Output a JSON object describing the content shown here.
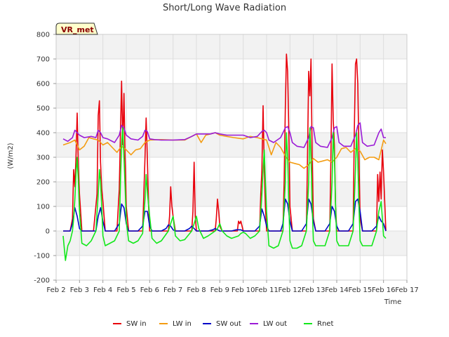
{
  "chart_data": {
    "type": "line",
    "title": "Short/Long Wave Radiation",
    "xlabel": "Time",
    "ylabel": "(W/m2)",
    "badge": "VR_met",
    "xlim": [
      2,
      17
    ],
    "ylim": [
      -200,
      800
    ],
    "x_ticks": [
      {
        "x": 2,
        "label": "Feb 2"
      },
      {
        "x": 3,
        "label": "Feb 3"
      },
      {
        "x": 4,
        "label": "Feb 4"
      },
      {
        "x": 5,
        "label": "Feb 5"
      },
      {
        "x": 6,
        "label": "Feb 6"
      },
      {
        "x": 7,
        "label": "Feb 7"
      },
      {
        "x": 8,
        "label": "Feb 8"
      },
      {
        "x": 9,
        "label": "Feb 9"
      },
      {
        "x": 10,
        "label": "Feb 10"
      },
      {
        "x": 11,
        "label": "Feb 11"
      },
      {
        "x": 12,
        "label": "Feb 12"
      },
      {
        "x": 13,
        "label": "Feb 13"
      },
      {
        "x": 14,
        "label": "Feb 14"
      },
      {
        "x": 15,
        "label": "Feb 15"
      },
      {
        "x": 16,
        "label": "Feb 16"
      },
      {
        "x": 17,
        "label": "Feb 17"
      }
    ],
    "y_ticks": [
      {
        "y": -200,
        "label": "-200"
      },
      {
        "y": -100,
        "label": "-100"
      },
      {
        "y": 0,
        "label": "0"
      },
      {
        "y": 100,
        "label": "100"
      },
      {
        "y": 200,
        "label": "200"
      },
      {
        "y": 300,
        "label": "300"
      },
      {
        "y": 400,
        "label": "400"
      },
      {
        "y": 500,
        "label": "500"
      },
      {
        "y": 600,
        "label": "600"
      },
      {
        "y": 700,
        "label": "700"
      },
      {
        "y": 800,
        "label": "800"
      }
    ],
    "grid": true,
    "legend_position": "bottom",
    "series": [
      {
        "name": "SW in",
        "color": "#e8000b",
        "x": [
          2.3,
          2.6,
          2.7,
          2.75,
          2.8,
          2.85,
          2.9,
          2.95,
          3.0,
          3.1,
          3.3,
          3.6,
          3.75,
          3.8,
          3.85,
          3.9,
          3.95,
          4.0,
          4.1,
          4.3,
          4.6,
          4.7,
          4.75,
          4.8,
          4.85,
          4.9,
          4.95,
          5.0,
          5.1,
          5.3,
          5.7,
          5.75,
          5.8,
          5.85,
          5.9,
          5.95,
          6.0,
          6.1,
          6.3,
          6.8,
          6.85,
          6.9,
          6.95,
          7.0,
          7.1,
          7.3,
          7.8,
          7.85,
          7.9,
          7.95,
          8.0,
          8.1,
          8.3,
          8.8,
          8.85,
          8.9,
          8.95,
          9.0,
          9.1,
          9.3,
          9.75,
          9.8,
          9.85,
          9.9,
          9.95,
          10.0,
          10.1,
          10.3,
          10.7,
          10.75,
          10.8,
          10.85,
          10.9,
          10.95,
          11.0,
          11.1,
          11.3,
          11.7,
          11.75,
          11.8,
          11.85,
          11.9,
          11.95,
          12.0,
          12.1,
          12.3,
          12.7,
          12.75,
          12.8,
          12.85,
          12.9,
          12.95,
          13.0,
          13.1,
          13.3,
          13.7,
          13.75,
          13.8,
          13.85,
          13.9,
          13.95,
          14.0,
          14.1,
          14.3,
          14.7,
          14.75,
          14.8,
          14.85,
          14.9,
          14.95,
          15.0,
          15.1,
          15.3,
          15.7,
          15.75,
          15.8,
          15.85,
          15.9,
          15.95,
          16.0,
          16.1
        ],
        "y": [
          0,
          0,
          50,
          250,
          180,
          300,
          480,
          260,
          150,
          0,
          0,
          0,
          150,
          470,
          530,
          280,
          170,
          120,
          0,
          0,
          0,
          170,
          400,
          610,
          350,
          560,
          300,
          100,
          0,
          0,
          0,
          150,
          300,
          460,
          300,
          110,
          0,
          0,
          0,
          0,
          60,
          180,
          100,
          60,
          0,
          0,
          0,
          80,
          280,
          60,
          0,
          0,
          0,
          0,
          50,
          130,
          80,
          20,
          0,
          0,
          0,
          40,
          30,
          40,
          20,
          0,
          0,
          0,
          0,
          150,
          250,
          510,
          250,
          100,
          0,
          0,
          0,
          0,
          200,
          500,
          720,
          650,
          400,
          100,
          0,
          0,
          0,
          300,
          650,
          550,
          700,
          300,
          50,
          0,
          0,
          0,
          300,
          680,
          450,
          350,
          100,
          0,
          0,
          0,
          0,
          400,
          680,
          700,
          600,
          300,
          50,
          0,
          0,
          0,
          230,
          120,
          240,
          130,
          330,
          240,
          0
        ]
      },
      {
        "name": "LW in",
        "color": "#f39c12",
        "x": [
          2.3,
          2.6,
          2.8,
          3.0,
          3.2,
          3.4,
          3.6,
          3.8,
          4.0,
          4.2,
          4.4,
          4.6,
          4.8,
          5.0,
          5.2,
          5.4,
          5.6,
          5.8,
          6.0,
          6.5,
          7.0,
          7.5,
          8.0,
          8.2,
          8.4,
          8.6,
          8.8,
          9.0,
          9.3,
          9.6,
          10.0,
          10.3,
          10.6,
          11.0,
          11.2,
          11.4,
          11.6,
          11.8,
          12.0,
          12.2,
          12.4,
          12.6,
          12.8,
          13.0,
          13.2,
          13.4,
          13.6,
          13.8,
          14.0,
          14.2,
          14.4,
          14.6,
          14.8,
          15.0,
          15.2,
          15.4,
          15.6,
          15.8,
          16.0,
          16.1
        ],
        "y": [
          350,
          360,
          370,
          330,
          345,
          380,
          375,
          370,
          350,
          360,
          340,
          320,
          345,
          330,
          310,
          330,
          335,
          360,
          370,
          372,
          370,
          370,
          395,
          360,
          390,
          395,
          400,
          390,
          385,
          380,
          375,
          385,
          380,
          370,
          310,
          360,
          340,
          305,
          280,
          275,
          270,
          255,
          270,
          295,
          280,
          285,
          290,
          280,
          300,
          335,
          340,
          320,
          335,
          325,
          290,
          300,
          300,
          290,
          370,
          355
        ]
      },
      {
        "name": "SW out",
        "color": "#0008c8",
        "x": [
          2.3,
          2.6,
          2.7,
          2.8,
          2.9,
          3.0,
          3.1,
          3.3,
          3.7,
          3.8,
          3.9,
          4.0,
          4.1,
          4.5,
          4.7,
          4.8,
          4.9,
          5.0,
          5.1,
          5.5,
          5.7,
          5.8,
          5.9,
          6.0,
          6.1,
          6.5,
          6.7,
          6.8,
          6.9,
          7.0,
          7.1,
          7.5,
          7.7,
          7.8,
          7.9,
          8.0,
          8.1,
          8.5,
          8.7,
          8.8,
          8.9,
          9.0,
          9.1,
          9.5,
          9.7,
          9.8,
          9.9,
          10.0,
          10.1,
          10.5,
          10.7,
          10.8,
          10.9,
          11.0,
          11.1,
          11.3,
          11.6,
          11.7,
          11.8,
          11.9,
          12.0,
          12.1,
          12.5,
          12.7,
          12.8,
          12.9,
          13.0,
          13.1,
          13.5,
          13.7,
          13.8,
          13.9,
          14.0,
          14.1,
          14.5,
          14.7,
          14.8,
          14.9,
          15.0,
          15.1,
          15.5,
          15.7,
          15.8,
          15.9,
          16.0,
          16.1
        ],
        "y": [
          0,
          0,
          30,
          95,
          60,
          10,
          0,
          0,
          0,
          60,
          95,
          40,
          0,
          0,
          30,
          110,
          95,
          30,
          0,
          0,
          20,
          80,
          80,
          20,
          0,
          0,
          10,
          25,
          20,
          5,
          0,
          0,
          10,
          20,
          10,
          0,
          0,
          0,
          5,
          10,
          5,
          0,
          0,
          0,
          5,
          5,
          5,
          0,
          0,
          0,
          20,
          90,
          60,
          20,
          0,
          0,
          0,
          30,
          130,
          110,
          40,
          0,
          0,
          30,
          130,
          110,
          40,
          0,
          0,
          30,
          100,
          80,
          20,
          0,
          0,
          30,
          120,
          130,
          80,
          0,
          0,
          20,
          60,
          40,
          30,
          0
        ]
      },
      {
        "name": "LW out",
        "color": "#9b1bd6",
        "x": [
          2.3,
          2.5,
          2.7,
          2.8,
          2.9,
          3.0,
          3.2,
          3.5,
          3.7,
          3.8,
          3.9,
          4.0,
          4.2,
          4.5,
          4.7,
          4.8,
          4.9,
          5.0,
          5.2,
          5.5,
          5.7,
          5.8,
          5.9,
          6.0,
          6.2,
          6.5,
          7.0,
          7.5,
          7.8,
          8.0,
          8.3,
          8.6,
          8.8,
          9.0,
          9.3,
          9.6,
          10.0,
          10.3,
          10.6,
          10.8,
          10.9,
          11.0,
          11.1,
          11.3,
          11.6,
          11.8,
          11.9,
          12.0,
          12.1,
          12.3,
          12.6,
          12.8,
          12.9,
          13.0,
          13.1,
          13.3,
          13.6,
          13.8,
          13.9,
          14.0,
          14.1,
          14.3,
          14.6,
          14.8,
          14.9,
          15.0,
          15.1,
          15.3,
          15.6,
          15.8,
          15.9,
          16.0,
          16.1
        ],
        "y": [
          375,
          365,
          380,
          410,
          400,
          390,
          380,
          385,
          380,
          410,
          400,
          380,
          375,
          360,
          390,
          430,
          420,
          390,
          375,
          370,
          385,
          410,
          405,
          375,
          372,
          370,
          370,
          372,
          385,
          395,
          395,
          395,
          400,
          395,
          390,
          390,
          390,
          380,
          385,
          405,
          410,
          400,
          370,
          360,
          380,
          420,
          425,
          400,
          360,
          345,
          340,
          380,
          425,
          420,
          360,
          345,
          340,
          380,
          420,
          425,
          360,
          345,
          345,
          390,
          430,
          440,
          360,
          345,
          350,
          400,
          415,
          380,
          380
        ]
      },
      {
        "name": "Rnet",
        "color": "#12e81a",
        "x": [
          2.3,
          2.4,
          2.5,
          2.6,
          2.7,
          2.75,
          2.8,
          2.85,
          2.9,
          2.95,
          3.0,
          3.1,
          3.3,
          3.5,
          3.7,
          3.8,
          3.85,
          3.9,
          3.95,
          4.0,
          4.1,
          4.3,
          4.5,
          4.7,
          4.75,
          4.8,
          4.85,
          4.9,
          4.95,
          5.0,
          5.1,
          5.3,
          5.5,
          5.7,
          5.8,
          5.85,
          5.9,
          6.0,
          6.1,
          6.3,
          6.5,
          6.8,
          6.9,
          7.0,
          7.1,
          7.3,
          7.5,
          7.8,
          7.9,
          8.0,
          8.1,
          8.3,
          8.5,
          8.8,
          8.9,
          9.0,
          9.1,
          9.3,
          9.5,
          9.8,
          9.9,
          10.0,
          10.1,
          10.3,
          10.5,
          10.7,
          10.8,
          10.85,
          10.9,
          10.95,
          11.0,
          11.1,
          11.3,
          11.5,
          11.7,
          11.8,
          11.85,
          11.9,
          11.95,
          12.0,
          12.1,
          12.3,
          12.5,
          12.7,
          12.8,
          12.85,
          12.9,
          12.95,
          13.0,
          13.1,
          13.3,
          13.5,
          13.7,
          13.8,
          13.85,
          13.9,
          13.95,
          14.0,
          14.1,
          14.3,
          14.5,
          14.7,
          14.8,
          14.85,
          14.9,
          14.95,
          15.0,
          15.1,
          15.3,
          15.5,
          15.7,
          15.8,
          15.85,
          15.9,
          15.95,
          16.0,
          16.1
        ],
        "y": [
          -20,
          -120,
          -60,
          -40,
          0,
          50,
          130,
          230,
          300,
          200,
          80,
          -50,
          -60,
          -40,
          0,
          150,
          250,
          200,
          100,
          -20,
          -60,
          -50,
          -40,
          0,
          200,
          350,
          420,
          300,
          180,
          40,
          -40,
          -50,
          -40,
          -10,
          130,
          230,
          160,
          60,
          -30,
          -50,
          -40,
          0,
          30,
          60,
          -20,
          -40,
          -35,
          0,
          30,
          60,
          10,
          -30,
          -20,
          0,
          10,
          30,
          0,
          -20,
          -30,
          -20,
          -10,
          -5,
          -10,
          -30,
          -20,
          0,
          150,
          250,
          330,
          200,
          80,
          -60,
          -70,
          -60,
          0,
          200,
          400,
          300,
          100,
          -40,
          -70,
          -70,
          -60,
          0,
          200,
          420,
          300,
          100,
          -40,
          -60,
          -60,
          -60,
          0,
          200,
          400,
          300,
          100,
          -40,
          -60,
          -60,
          -60,
          0,
          250,
          400,
          280,
          100,
          -40,
          -60,
          -60,
          -60,
          0,
          80,
          100,
          120,
          50,
          -20,
          -30
        ]
      }
    ]
  }
}
